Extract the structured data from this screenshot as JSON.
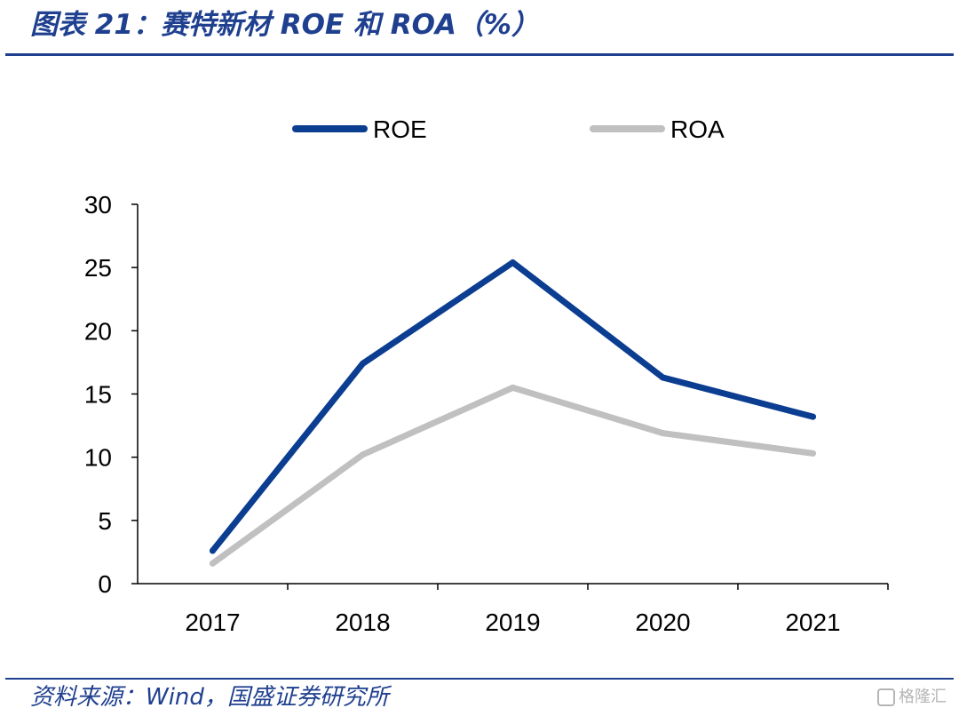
{
  "header": {
    "title": "图表 21：赛特新材 ROE 和 ROA（%）"
  },
  "footer": {
    "source": "资料来源：Wind，国盛证券研究所",
    "watermark": "格隆汇"
  },
  "colors": {
    "roe": "#0b3d91",
    "roa": "#c0c0c0",
    "accent": "#1f3f8f"
  },
  "chart_data": {
    "type": "line",
    "title": "赛特新材 ROE 和 ROA（%）",
    "xlabel": "",
    "ylabel": "",
    "categories": [
      "2017",
      "2018",
      "2019",
      "2020",
      "2021"
    ],
    "ylim": [
      0,
      30
    ],
    "yticks": [
      "0",
      "5",
      "10",
      "15",
      "20",
      "25",
      "30"
    ],
    "legend_position": "top",
    "series": [
      {
        "name": "ROE",
        "values": [
          2.6,
          17.4,
          25.4,
          16.3,
          13.2
        ]
      },
      {
        "name": "ROA",
        "values": [
          1.6,
          10.2,
          15.5,
          11.9,
          10.3
        ]
      }
    ]
  }
}
